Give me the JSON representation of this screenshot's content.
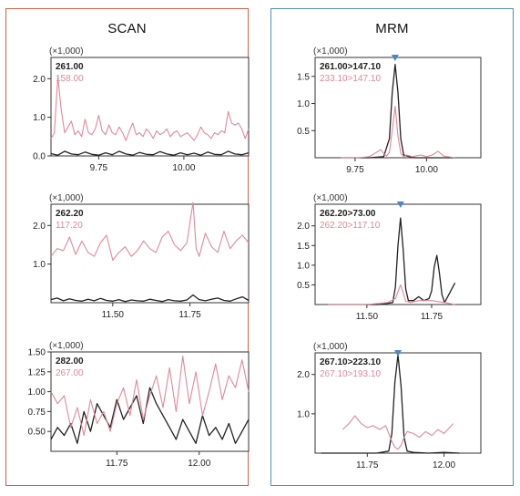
{
  "panels": {
    "scan": {
      "title": "SCAN",
      "border_color": "#c9624a"
    },
    "mrm": {
      "title": "MRM",
      "border_color": "#4f8fb8"
    }
  },
  "colors": {
    "primary": "#222222",
    "secondary": "#e0889c",
    "marker": "#4a86c5"
  },
  "chart_data": [
    {
      "panel": "scan",
      "type": "line",
      "multiplier": "(×1,000)",
      "xlim": [
        9.61,
        10.19
      ],
      "ylim": [
        0,
        2.55
      ],
      "xticks": [
        9.75,
        10.0
      ],
      "xtick_labels": [
        "9.75",
        "10.00"
      ],
      "yticks": [
        0,
        1.0,
        2.0
      ],
      "ytick_labels": [
        "0.0",
        "1.0",
        "2.0"
      ],
      "series": [
        {
          "name": "261.00",
          "color": "#222222",
          "x": [
            9.61,
            9.63,
            9.65,
            9.67,
            9.69,
            9.71,
            9.73,
            9.75,
            9.77,
            9.79,
            9.81,
            9.83,
            9.85,
            9.87,
            9.89,
            9.91,
            9.93,
            9.95,
            9.97,
            9.99,
            10.01,
            10.03,
            10.05,
            10.07,
            10.09,
            10.11,
            10.13,
            10.15,
            10.17,
            10.19
          ],
          "y": [
            0.06,
            0.02,
            0.12,
            0.05,
            0.03,
            0.1,
            0.04,
            0.02,
            0.08,
            0.03,
            0.12,
            0.05,
            0.02,
            0.09,
            0.04,
            0.03,
            0.11,
            0.05,
            0.02,
            0.08,
            0.03,
            0.07,
            0.02,
            0.1,
            0.04,
            0.03,
            0.12,
            0.05,
            0.03,
            0.08
          ]
        },
        {
          "name": "158.00",
          "color": "#e0889c",
          "x": [
            9.61,
            9.62,
            9.63,
            9.64,
            9.65,
            9.66,
            9.67,
            9.68,
            9.69,
            9.7,
            9.71,
            9.72,
            9.73,
            9.74,
            9.75,
            9.76,
            9.77,
            9.78,
            9.79,
            9.8,
            9.81,
            9.82,
            9.83,
            9.84,
            9.85,
            9.86,
            9.87,
            9.88,
            9.89,
            9.9,
            9.91,
            9.92,
            9.93,
            9.94,
            9.95,
            9.96,
            9.97,
            9.98,
            9.99,
            10.0,
            10.01,
            10.02,
            10.03,
            10.04,
            10.05,
            10.06,
            10.07,
            10.08,
            10.09,
            10.1,
            10.11,
            10.12,
            10.13,
            10.14,
            10.15,
            10.16,
            10.17,
            10.18,
            10.19
          ],
          "y": [
            0.45,
            0.6,
            2.05,
            1.2,
            0.6,
            0.75,
            0.9,
            0.55,
            0.65,
            0.5,
            0.95,
            0.6,
            0.55,
            0.7,
            1.05,
            0.65,
            0.55,
            0.8,
            0.6,
            0.55,
            0.75,
            0.6,
            0.4,
            0.65,
            0.85,
            0.55,
            0.6,
            0.5,
            0.7,
            0.6,
            0.45,
            0.65,
            0.55,
            0.6,
            0.7,
            0.5,
            0.6,
            0.65,
            0.5,
            0.55,
            0.6,
            0.5,
            0.4,
            0.55,
            0.75,
            0.6,
            0.55,
            0.45,
            0.6,
            0.55,
            0.65,
            0.6,
            1.15,
            0.85,
            0.8,
            0.85,
            0.7,
            0.45,
            0.7
          ]
        }
      ]
    },
    {
      "panel": "scan",
      "type": "line",
      "multiplier": "(×1,000)",
      "xlim": [
        11.3,
        11.94
      ],
      "ylim": [
        0,
        2.55
      ],
      "xticks": [
        11.5,
        11.75
      ],
      "xtick_labels": [
        "11.50",
        "11.75"
      ],
      "yticks": [
        1.0,
        2.0
      ],
      "ytick_labels": [
        "1.0",
        "2.0"
      ],
      "series": [
        {
          "name": "262.20",
          "color": "#222222",
          "x": [
            11.3,
            11.32,
            11.34,
            11.36,
            11.38,
            11.4,
            11.42,
            11.44,
            11.46,
            11.48,
            11.5,
            11.52,
            11.54,
            11.56,
            11.58,
            11.6,
            11.62,
            11.64,
            11.66,
            11.68,
            11.7,
            11.72,
            11.74,
            11.76,
            11.78,
            11.8,
            11.82,
            11.84,
            11.86,
            11.88,
            11.9,
            11.92,
            11.94
          ],
          "y": [
            0.08,
            0.12,
            0.05,
            0.1,
            0.06,
            0.04,
            0.09,
            0.05,
            0.11,
            0.06,
            0.04,
            0.08,
            0.03,
            0.07,
            0.05,
            0.04,
            0.09,
            0.06,
            0.03,
            0.08,
            0.05,
            0.04,
            0.07,
            0.2,
            0.08,
            0.05,
            0.09,
            0.12,
            0.06,
            0.04,
            0.1,
            0.15,
            0.06
          ]
        },
        {
          "name": "117.20",
          "color": "#e0889c",
          "x": [
            11.3,
            11.32,
            11.34,
            11.36,
            11.38,
            11.4,
            11.42,
            11.44,
            11.46,
            11.48,
            11.5,
            11.52,
            11.54,
            11.56,
            11.58,
            11.6,
            11.62,
            11.64,
            11.66,
            11.68,
            11.7,
            11.72,
            11.74,
            11.76,
            11.77,
            11.78,
            11.8,
            11.82,
            11.84,
            11.86,
            11.88,
            11.9,
            11.92,
            11.94
          ],
          "y": [
            1.2,
            1.4,
            1.35,
            1.7,
            1.25,
            1.6,
            1.3,
            1.2,
            1.55,
            1.75,
            1.1,
            1.3,
            1.45,
            1.2,
            1.35,
            1.6,
            1.4,
            1.3,
            1.7,
            1.85,
            1.5,
            1.35,
            1.55,
            2.6,
            1.4,
            1.2,
            1.8,
            1.45,
            1.3,
            1.85,
            1.4,
            1.6,
            1.75,
            1.55
          ]
        }
      ]
    },
    {
      "panel": "scan",
      "type": "line",
      "multiplier": "(×1,000)",
      "xlim": [
        11.55,
        12.15
      ],
      "ylim": [
        0.25,
        1.5
      ],
      "xticks": [
        11.75,
        12.0
      ],
      "xtick_labels": [
        "11.75",
        "12.00"
      ],
      "yticks": [
        0.5,
        0.75,
        1.0,
        1.25,
        1.5
      ],
      "ytick_labels": [
        "0.50",
        "0.75",
        "1.00",
        "1.25",
        "1.50"
      ],
      "series": [
        {
          "name": "282.00",
          "color": "#222222",
          "x": [
            11.55,
            11.57,
            11.59,
            11.61,
            11.63,
            11.65,
            11.67,
            11.69,
            11.71,
            11.73,
            11.75,
            11.77,
            11.79,
            11.81,
            11.83,
            11.85,
            11.87,
            11.89,
            11.91,
            11.93,
            11.95,
            11.97,
            11.99,
            12.01,
            12.03,
            12.05,
            12.07,
            12.09,
            12.11,
            12.13,
            12.15
          ],
          "y": [
            0.4,
            0.55,
            0.45,
            0.6,
            0.35,
            0.75,
            0.5,
            0.85,
            0.7,
            0.55,
            0.9,
            0.65,
            0.8,
            0.95,
            0.6,
            1.05,
            0.85,
            0.7,
            0.55,
            0.4,
            0.65,
            0.5,
            0.35,
            0.7,
            0.45,
            0.55,
            0.4,
            0.6,
            0.35,
            0.5,
            0.65
          ]
        },
        {
          "name": "267.00",
          "color": "#e0889c",
          "x": [
            11.55,
            11.57,
            11.59,
            11.61,
            11.63,
            11.65,
            11.67,
            11.69,
            11.71,
            11.73,
            11.75,
            11.77,
            11.79,
            11.81,
            11.83,
            11.85,
            11.87,
            11.89,
            11.91,
            11.93,
            11.95,
            11.97,
            11.99,
            12.01,
            12.03,
            12.05,
            12.07,
            12.09,
            12.11,
            12.13,
            12.15
          ],
          "y": [
            1.0,
            0.85,
            0.95,
            0.55,
            0.8,
            0.45,
            0.9,
            0.6,
            0.75,
            0.5,
            0.85,
            1.05,
            0.7,
            1.15,
            0.65,
            0.95,
            1.2,
            0.8,
            1.3,
            0.75,
            1.45,
            0.85,
            1.25,
            0.7,
            1.0,
            1.35,
            0.9,
            1.2,
            1.05,
            1.4,
            1.0
          ]
        }
      ]
    },
    {
      "panel": "mrm",
      "type": "line",
      "multiplier": "(×1,000)",
      "xlim": [
        9.61,
        10.19
      ],
      "ylim": [
        0,
        1.85
      ],
      "xticks": [
        9.75,
        10.0
      ],
      "xtick_labels": [
        "9.75",
        "10.00"
      ],
      "yticks": [
        0.5,
        1.0,
        1.5
      ],
      "ytick_labels": [
        "0.5",
        "1.0",
        "1.5"
      ],
      "marker_x": 9.89,
      "series": [
        {
          "name": "261.00>147.10",
          "color": "#222222",
          "x": [
            9.7,
            9.8,
            9.85,
            9.87,
            9.88,
            9.89,
            9.9,
            9.91,
            9.92,
            9.94,
            9.96,
            10.0,
            10.05,
            10.1
          ],
          "y": [
            0.0,
            0.0,
            0.02,
            0.35,
            1.2,
            1.72,
            1.2,
            0.35,
            0.05,
            0.02,
            0.0,
            0.0,
            0.0,
            0.0
          ]
        },
        {
          "name": "233.10>147.10",
          "color": "#e0889c",
          "x": [
            9.7,
            9.76,
            9.8,
            9.84,
            9.85,
            9.86,
            9.87,
            9.88,
            9.89,
            9.9,
            9.91,
            9.92,
            9.93,
            9.95,
            9.98,
            10.0,
            10.02,
            10.04,
            10.06,
            10.1
          ],
          "y": [
            0.0,
            0.0,
            0.02,
            0.15,
            0.08,
            0.03,
            0.1,
            0.5,
            0.95,
            0.4,
            0.08,
            0.02,
            0.05,
            0.02,
            0.05,
            0.02,
            0.05,
            0.12,
            0.03,
            0.0
          ]
        }
      ]
    },
    {
      "panel": "mrm",
      "type": "line",
      "multiplier": "(×1,000)",
      "xlim": [
        11.3,
        11.94
      ],
      "ylim": [
        0,
        2.55
      ],
      "xticks": [
        11.5,
        11.75
      ],
      "xtick_labels": [
        "11.50",
        "11.75"
      ],
      "yticks": [
        0.5,
        1.0,
        1.5,
        2.0
      ],
      "ytick_labels": [
        "0.5",
        "1.0",
        "1.5",
        "2.0"
      ],
      "marker_x": 11.63,
      "series": [
        {
          "name": "262.20>73.00",
          "color": "#222222",
          "x": [
            11.35,
            11.45,
            11.55,
            11.6,
            11.61,
            11.62,
            11.63,
            11.64,
            11.65,
            11.66,
            11.68,
            11.7,
            11.72,
            11.74,
            11.75,
            11.76,
            11.77,
            11.78,
            11.79,
            11.8,
            11.82,
            11.84
          ],
          "y": [
            0.0,
            0.0,
            0.0,
            0.05,
            0.45,
            1.5,
            2.2,
            1.4,
            0.4,
            0.1,
            0.1,
            0.2,
            0.1,
            0.15,
            0.35,
            0.95,
            1.25,
            0.8,
            0.25,
            0.05,
            0.3,
            0.55
          ]
        },
        {
          "name": "262.20>117.10",
          "color": "#e0889c",
          "x": [
            11.35,
            11.5,
            11.58,
            11.61,
            11.63,
            11.64,
            11.65,
            11.67,
            11.7,
            11.75,
            11.8,
            11.84
          ],
          "y": [
            0.0,
            0.0,
            0.05,
            0.15,
            0.5,
            0.3,
            0.08,
            0.05,
            0.1,
            0.1,
            0.05,
            0.0
          ]
        }
      ]
    },
    {
      "panel": "mrm",
      "type": "line",
      "multiplier": "(×1,000)",
      "xlim": [
        11.58,
        12.12
      ],
      "ylim": [
        0,
        2.55
      ],
      "xticks": [
        11.75,
        12.0
      ],
      "xtick_labels": [
        "11.75",
        "12.00"
      ],
      "yticks": [
        1.0,
        2.0
      ],
      "ytick_labels": [
        "1.0",
        "2.0"
      ],
      "marker_x": 11.85,
      "series": [
        {
          "name": "267.10>223.10",
          "color": "#222222",
          "x": [
            11.6,
            11.7,
            11.78,
            11.82,
            11.83,
            11.84,
            11.85,
            11.86,
            11.87,
            11.88,
            11.9,
            11.95,
            12.0,
            12.05
          ],
          "y": [
            0.0,
            0.0,
            0.0,
            0.05,
            0.5,
            1.8,
            2.5,
            1.7,
            0.4,
            0.05,
            0.02,
            0.0,
            0.02,
            0.0
          ]
        },
        {
          "name": "267.10>193.10",
          "color": "#e0889c",
          "x": [
            11.67,
            11.69,
            11.71,
            11.73,
            11.75,
            11.77,
            11.79,
            11.81,
            11.82,
            11.83,
            11.84,
            11.85,
            11.86,
            11.87,
            11.88,
            11.9,
            11.92,
            11.94,
            11.96,
            11.98,
            12.0,
            12.03
          ],
          "y": [
            0.6,
            0.75,
            0.95,
            0.75,
            0.65,
            0.7,
            0.6,
            0.7,
            0.5,
            0.3,
            0.15,
            0.1,
            0.2,
            0.4,
            0.55,
            0.5,
            0.4,
            0.55,
            0.45,
            0.6,
            0.5,
            0.75
          ]
        }
      ]
    }
  ]
}
